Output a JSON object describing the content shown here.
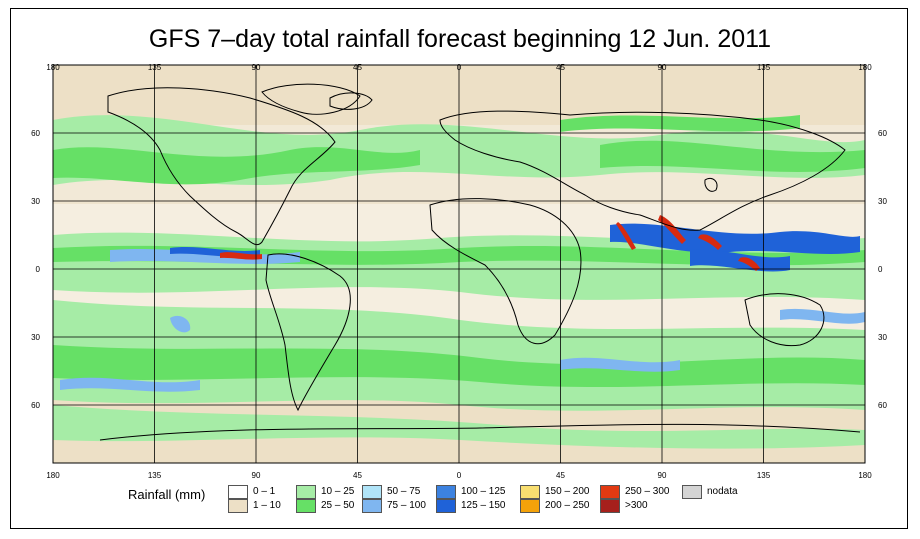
{
  "title": "GFS 7–day total rainfall forecast beginning 12 Jun. 2011",
  "lon_ticks": [
    "180",
    "135",
    "90",
    "45",
    "0",
    "45",
    "90",
    "135",
    "180"
  ],
  "lat_ticks": [
    "60",
    "30",
    "0",
    "30",
    "60"
  ],
  "colors": {
    "ocean_dry": "#ffffff",
    "land_dry": "#ede0c6",
    "light_rain": "#a6eca6",
    "moderate_rain": "#66e066",
    "heavy_rain": "#7fb6f0",
    "very_heavy_rain": "#1f62d8",
    "extreme_rain": "#d82a10"
  },
  "legend": {
    "label": "Rainfall (mm)",
    "items": [
      {
        "label": "0 – 1",
        "color": "#ffffff"
      },
      {
        "label": "1 – 10",
        "color": "#ede0c6"
      },
      {
        "label": "10 – 25",
        "color": "#a6eca6"
      },
      {
        "label": "25 – 50",
        "color": "#66e066"
      },
      {
        "label": "50 – 75",
        "color": "#b0e4f8"
      },
      {
        "label": "75 – 100",
        "color": "#7fb6f0"
      },
      {
        "label": "100 – 125",
        "color": "#3c82e0"
      },
      {
        "label": "125 – 150",
        "color": "#1f62d8"
      },
      {
        "label": "150 – 200",
        "color": "#f8de70"
      },
      {
        "label": "200 – 250",
        "color": "#f4a20a"
      },
      {
        "label": "250 – 300",
        "color": "#e23a12"
      },
      {
        "label": ">300",
        "color": "#a6201c"
      },
      {
        "label": "nodata",
        "color": "#d4d4d4"
      }
    ]
  }
}
